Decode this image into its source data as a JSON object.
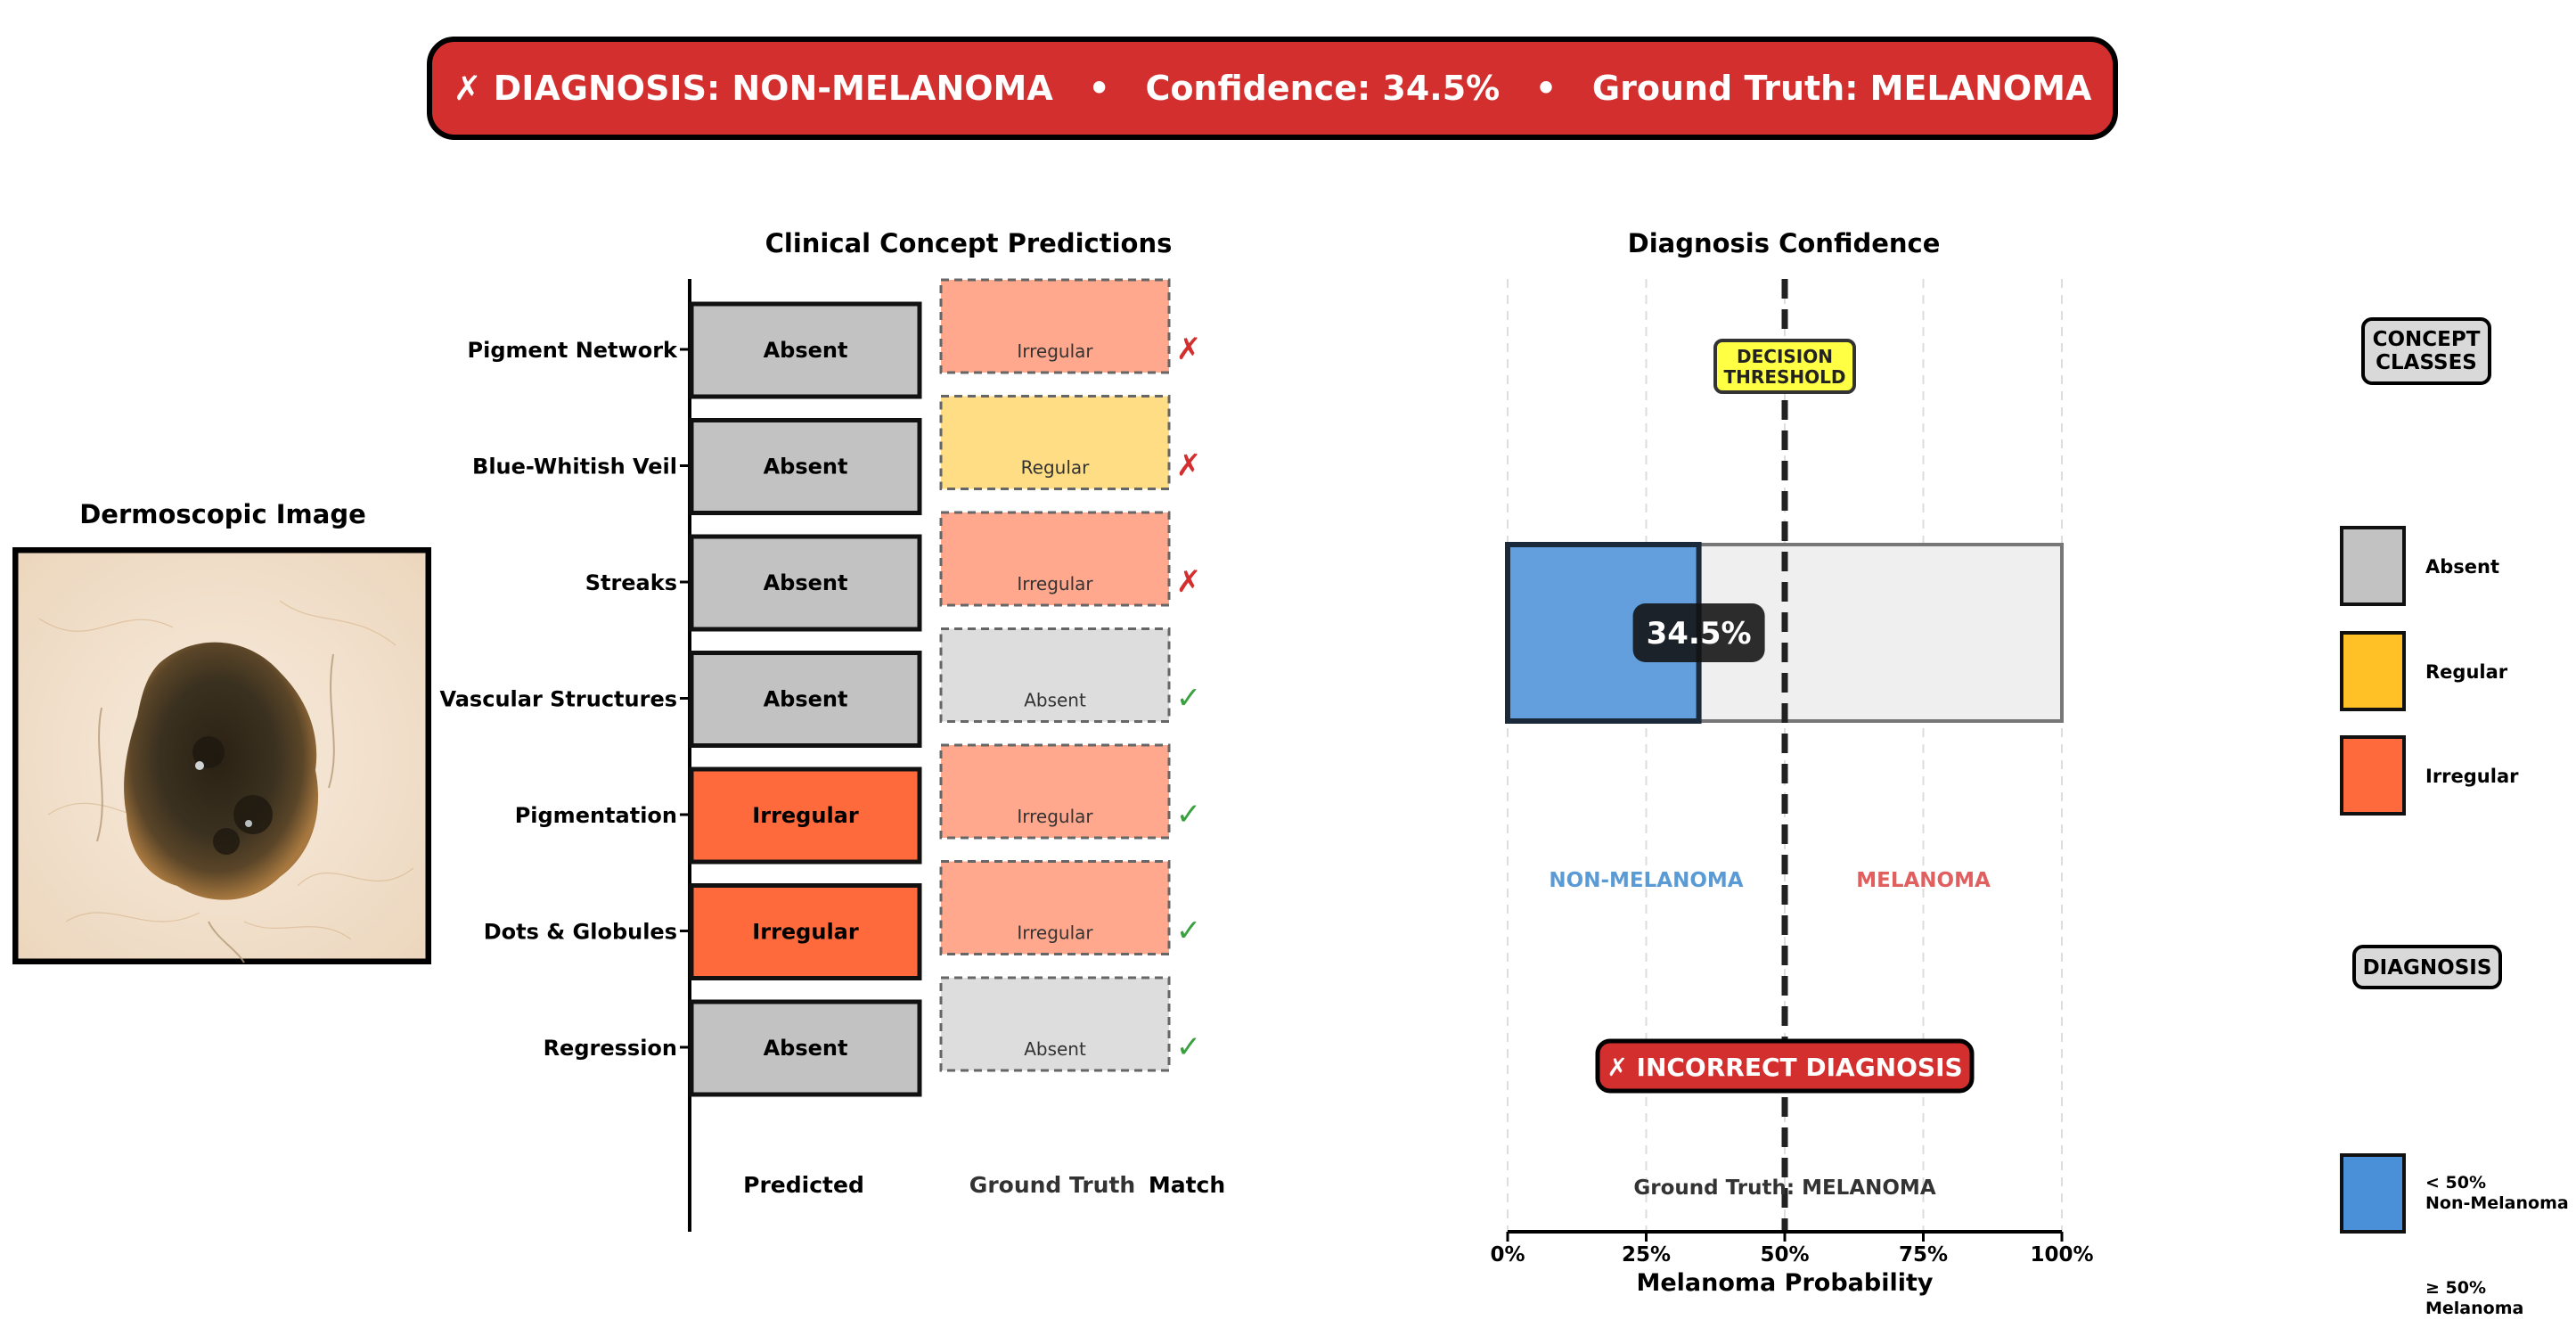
{
  "banner": {
    "text": "✗ DIAGNOSIS: NON-MELANOMA   •   Confidence: 34.5%   •   Ground Truth: MELANOMA",
    "color": "#d32f2f"
  },
  "image_panel": {
    "title": "Dermoscopic Image"
  },
  "concepts": {
    "title": "Clinical Concept Predictions",
    "col_predicted": "Predicted",
    "col_ground_truth": "Ground Truth",
    "col_match": "Match",
    "rows": [
      {
        "name": "Pigment Network",
        "predicted": "Absent",
        "ground_truth": "Irregular",
        "match": "✗",
        "correct": false
      },
      {
        "name": "Blue-Whitish Veil",
        "predicted": "Absent",
        "ground_truth": "Regular",
        "match": "✗",
        "correct": false
      },
      {
        "name": "Streaks",
        "predicted": "Absent",
        "ground_truth": "Irregular",
        "match": "✗",
        "correct": false
      },
      {
        "name": "Vascular Structures",
        "predicted": "Absent",
        "ground_truth": "Absent",
        "match": "✓",
        "correct": true
      },
      {
        "name": "Pigmentation",
        "predicted": "Irregular",
        "ground_truth": "Irregular",
        "match": "✓",
        "correct": true
      },
      {
        "name": "Dots & Globules",
        "predicted": "Irregular",
        "ground_truth": "Irregular",
        "match": "✓",
        "correct": true
      },
      {
        "name": "Regression",
        "predicted": "Absent",
        "ground_truth": "Absent",
        "match": "✓",
        "correct": true
      }
    ]
  },
  "class_colors": {
    "Absent": "#c2c2c2",
    "Regular": "#ffc125",
    "Irregular": "#ff6a3d"
  },
  "gt_colors": {
    "Absent": "#dddddd",
    "Regular": "#ffdd85",
    "Irregular": "#ffa88e"
  },
  "chart_data": {
    "type": "bar",
    "title": "Diagnosis Confidence",
    "xlabel": "Melanoma Probability",
    "value": 34.5,
    "value_label": "34.5%",
    "threshold": 50,
    "threshold_label_line1": "DECISION",
    "threshold_label_line2": "THRESHOLD",
    "xlim": [
      0,
      100
    ],
    "ticks": [
      0,
      25,
      50,
      75,
      100
    ],
    "tick_labels": [
      "0%",
      "25%",
      "50%",
      "75%",
      "100%"
    ],
    "region_left": "NON-MELANOMA",
    "region_right": "MELANOMA",
    "verdict": "✗ INCORRECT DIAGNOSIS",
    "ground_truth_text": "Ground Truth: MELANOMA",
    "bar_color": "#4a90d9",
    "left_color": "#5b9bd5",
    "right_color": "#e06060"
  },
  "legend": {
    "concept_header_line1": "CONCEPT",
    "concept_header_line2": "CLASSES",
    "items": [
      {
        "label": "Absent",
        "color": "#c2c2c2"
      },
      {
        "label": "Regular",
        "color": "#ffc125"
      },
      {
        "label": "Irregular",
        "color": "#ff6a3d"
      }
    ],
    "diagnosis_header": "DIAGNOSIS",
    "dx_items": [
      {
        "line1": "< 50%",
        "line2": "Non-Melanoma",
        "color": "#4a90d9"
      },
      {
        "line1": "≥ 50%",
        "line2": "Melanoma",
        "color": "#d32f2f"
      }
    ]
  }
}
